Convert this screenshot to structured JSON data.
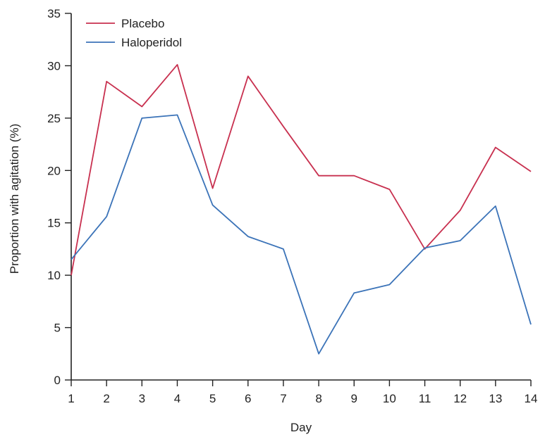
{
  "chart_data": {
    "type": "line",
    "title": "",
    "xlabel": "Day",
    "ylabel": "Proportion with agitation (%)",
    "x": [
      1,
      2,
      3,
      4,
      5,
      6,
      7,
      8,
      9,
      10,
      11,
      12,
      13,
      14
    ],
    "xlim": [
      1,
      14
    ],
    "ylim": [
      0,
      35
    ],
    "yticks": [
      0,
      5,
      10,
      15,
      20,
      25,
      30,
      35
    ],
    "xticks": [
      1,
      2,
      3,
      4,
      5,
      6,
      7,
      8,
      9,
      10,
      11,
      12,
      13,
      14
    ],
    "grid": false,
    "legend_position": "top-left",
    "series": [
      {
        "name": "Placebo",
        "color": "#c8304f",
        "values": [
          10.0,
          28.5,
          26.1,
          30.1,
          18.3,
          29.0,
          24.2,
          19.5,
          19.5,
          18.2,
          12.5,
          16.2,
          22.2,
          19.9
        ]
      },
      {
        "name": "Haloperidol",
        "color": "#3b73b8",
        "values": [
          11.5,
          15.6,
          25.0,
          25.3,
          16.7,
          13.7,
          12.5,
          2.5,
          8.3,
          9.1,
          12.6,
          13.3,
          16.6,
          5.3
        ]
      }
    ]
  }
}
